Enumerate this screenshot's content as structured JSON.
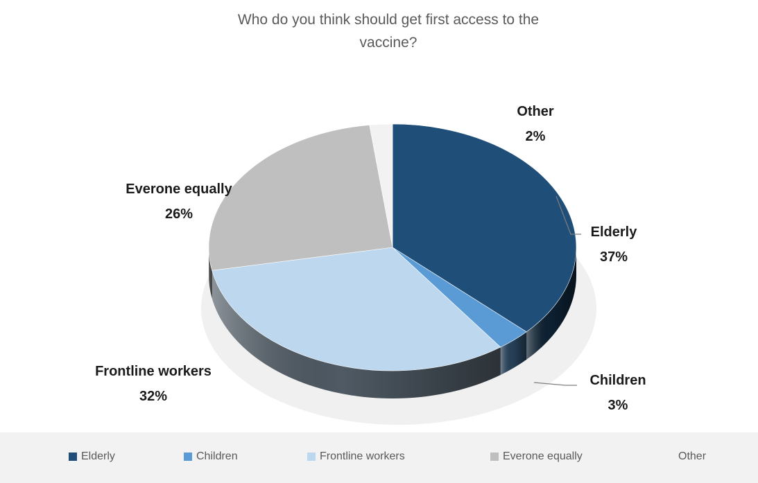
{
  "chart_data": {
    "type": "pie",
    "title_lines": [
      "Who do you think should get first access to the",
      "vaccine?"
    ],
    "categories": [
      "Elderly",
      "Children",
      "Frontline workers",
      "Everone equally",
      "Other"
    ],
    "values": [
      37,
      3,
      32,
      26,
      2
    ],
    "value_labels": [
      "37%",
      "3%",
      "32%",
      "26%",
      "2%"
    ],
    "unit": "%",
    "colors": [
      "#1f4e79",
      "#5b9bd5",
      "#bdd7ee",
      "#bfbfbf",
      "#f2f2f2"
    ],
    "style": "3d",
    "legend_position": "bottom"
  }
}
